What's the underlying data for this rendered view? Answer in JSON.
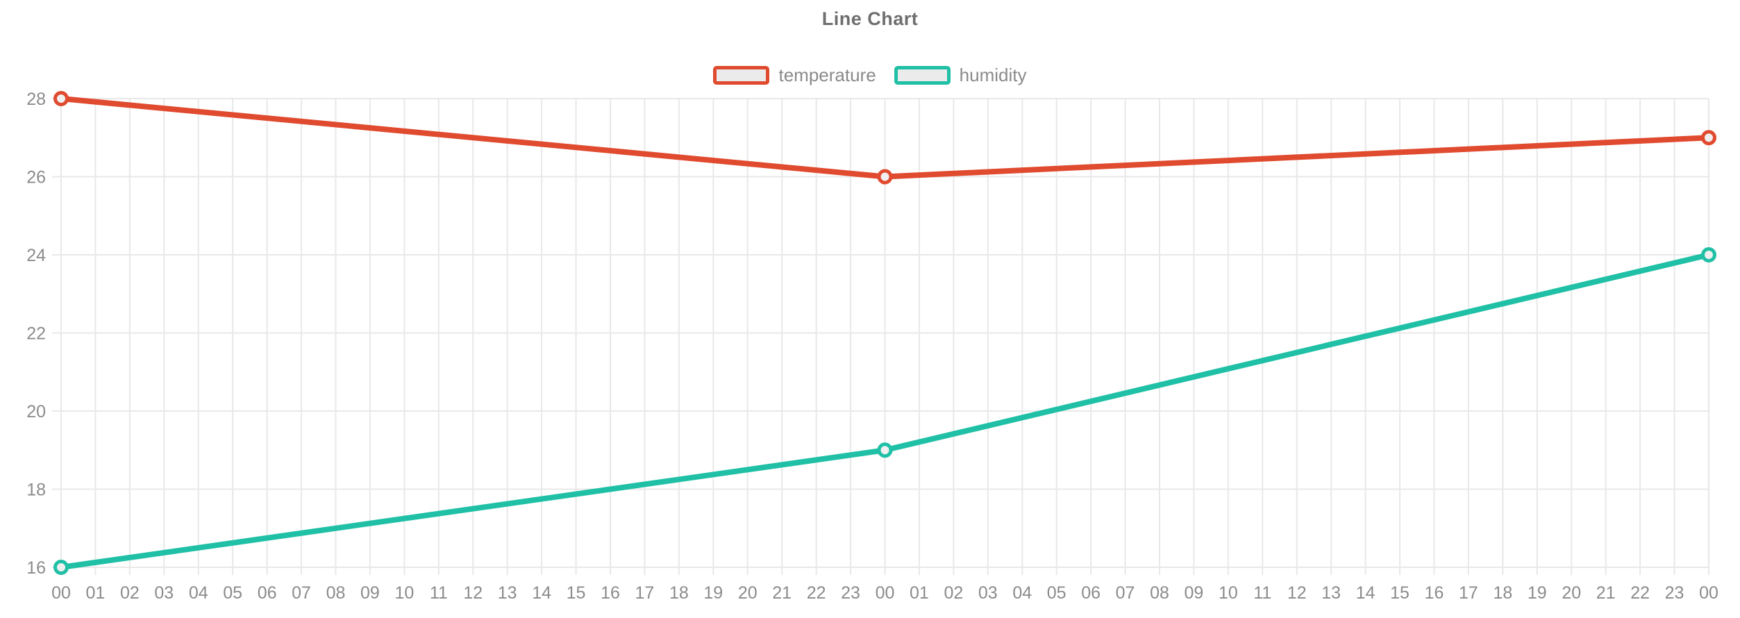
{
  "chart_data": {
    "type": "line",
    "title": "Line Chart",
    "x_labels": [
      "00",
      "01",
      "02",
      "03",
      "04",
      "05",
      "06",
      "07",
      "08",
      "09",
      "10",
      "11",
      "12",
      "13",
      "14",
      "15",
      "16",
      "17",
      "18",
      "19",
      "20",
      "21",
      "22",
      "23",
      "00",
      "01",
      "02",
      "03",
      "04",
      "05",
      "06",
      "07",
      "08",
      "09",
      "10",
      "11",
      "12",
      "13",
      "14",
      "15",
      "16",
      "17",
      "18",
      "19",
      "20",
      "21",
      "22",
      "23",
      "00"
    ],
    "y_ticks": [
      16,
      18,
      20,
      22,
      24,
      26,
      28
    ],
    "ylim": [
      16,
      28
    ],
    "grid": true,
    "legend_position": "top-center",
    "series": [
      {
        "name": "temperature",
        "color": "#e04a2e",
        "x_indices": [
          0,
          24,
          48
        ],
        "values": [
          28,
          26,
          27
        ]
      },
      {
        "name": "humidity",
        "color": "#1fc0a6",
        "x_indices": [
          0,
          24,
          48
        ],
        "values": [
          16,
          19,
          24
        ]
      }
    ],
    "colors": {
      "grid_line": "#e8e8e8",
      "axis_text": "#8b8b8b",
      "title_text": "#6e6e6e",
      "legend_text": "#8a8a8a",
      "legend_swatch_fill": "#ebebeb",
      "marker_fill": "#f0f0f0",
      "background": "#ffffff"
    }
  }
}
